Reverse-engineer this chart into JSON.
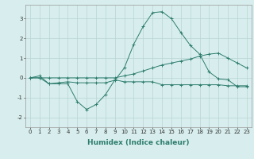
{
  "xlabel": "Humidex (Indice chaleur)",
  "x": [
    0,
    1,
    2,
    3,
    4,
    5,
    6,
    7,
    8,
    9,
    10,
    11,
    12,
    13,
    14,
    15,
    16,
    17,
    18,
    19,
    20,
    21,
    22,
    23
  ],
  "line1": [
    0.0,
    0.1,
    -0.3,
    -0.3,
    -0.3,
    -1.2,
    -1.6,
    -1.35,
    -0.85,
    -0.1,
    -0.2,
    -0.2,
    -0.2,
    -0.2,
    -0.35,
    -0.35,
    -0.35,
    -0.35,
    -0.35,
    -0.35,
    -0.35,
    -0.4,
    -0.4,
    -0.4
  ],
  "line2": [
    0.0,
    0.0,
    -0.3,
    -0.25,
    -0.2,
    -0.25,
    -0.25,
    -0.25,
    -0.25,
    -0.12,
    0.5,
    1.7,
    2.6,
    3.3,
    3.35,
    3.0,
    2.3,
    1.65,
    1.2,
    0.3,
    -0.05,
    -0.1,
    -0.45,
    -0.45
  ],
  "line3": [
    0.0,
    0.0,
    0.0,
    0.0,
    0.0,
    0.0,
    0.0,
    0.0,
    0.0,
    0.0,
    0.1,
    0.2,
    0.35,
    0.5,
    0.65,
    0.75,
    0.85,
    0.95,
    1.1,
    1.2,
    1.25,
    1.0,
    0.75,
    0.5
  ],
  "line_color": "#2e7d6e",
  "bg_color": "#d8eeee",
  "grid_color": "#b8d4d4",
  "ylim": [
    -2.5,
    3.7
  ],
  "yticks": [
    -2,
    -1,
    0,
    1,
    2,
    3
  ],
  "figsize": [
    3.2,
    2.0
  ],
  "dpi": 100
}
